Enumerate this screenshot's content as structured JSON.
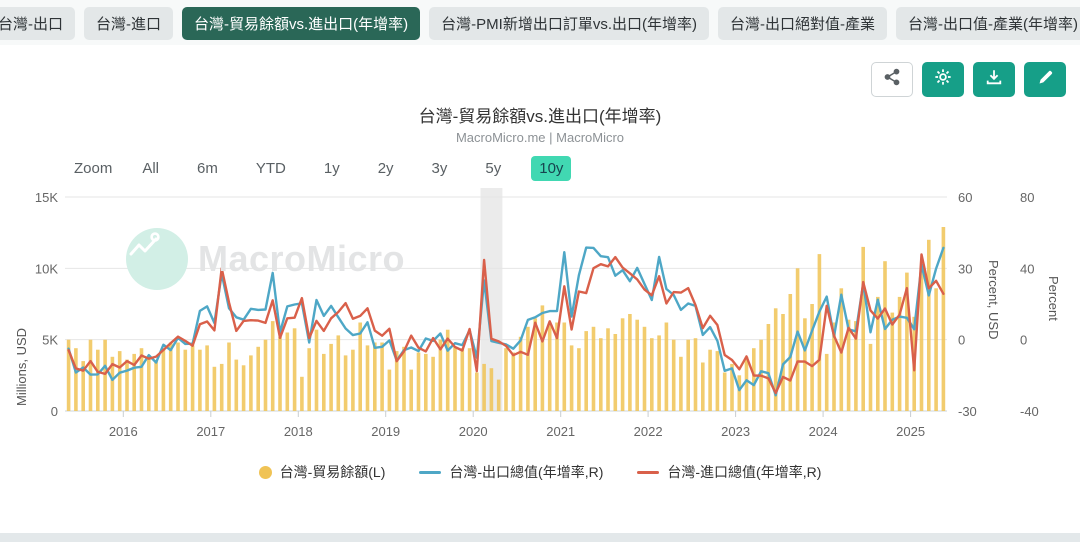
{
  "tabbar": {
    "tabs": [
      {
        "label": "台灣-出口",
        "active": false
      },
      {
        "label": "台灣-進口",
        "active": false
      },
      {
        "label": "台灣-貿易餘額vs.進出口(年增率)",
        "active": true
      },
      {
        "label": "台灣-PMI新增出口訂單vs.出口(年增率)",
        "active": false
      },
      {
        "label": "台灣-出口絕對值-產業",
        "active": false
      },
      {
        "label": "台灣-出口值-產業(年增率)",
        "active": false
      }
    ],
    "active_color": "#2a6757",
    "inactive_color": "#e3e7e8"
  },
  "toolbar": {
    "buttons": [
      "share",
      "settings",
      "download",
      "edit"
    ],
    "accent_color": "#169f88"
  },
  "header": {
    "title": "台灣-貿易餘額vs.進出口(年增率)",
    "subtitle": "MacroMicro.me | MacroMicro"
  },
  "zoombar": {
    "label": "Zoom",
    "options": [
      "All",
      "6m",
      "YTD",
      "1y",
      "2y",
      "3y",
      "5y",
      "10y"
    ],
    "active": "10y",
    "active_color": "#41d8b2"
  },
  "watermark": {
    "brand": "MacroMicro"
  },
  "legend": [
    {
      "label": "台灣-貿易餘額(L)",
      "marker": "dot"
    },
    {
      "label": "台灣-出口總值(年增率,R)",
      "marker": "line"
    },
    {
      "label": "台灣-進口總值(年增率,R)",
      "marker": "line"
    }
  ],
  "chart_data": {
    "type": "combo-bar-line",
    "x_start": "2015-05",
    "x_freq": "monthly",
    "x_count": 121,
    "x_ticks": [
      2016,
      2017,
      2018,
      2019,
      2020,
      2021,
      2022,
      2023,
      2024,
      2025
    ],
    "recession_band": {
      "start": "2020-02",
      "end": "2020-04",
      "color": "#ebebeb"
    },
    "axes": {
      "left": {
        "label": "Millions, USD",
        "range": [
          0,
          15000
        ],
        "ticks": [
          0,
          5000,
          10000,
          15000
        ],
        "tick_labels": [
          "0",
          "5K",
          "10K",
          "15K"
        ]
      },
      "right1": {
        "label": "Percent, USD",
        "range": [
          -30,
          60
        ],
        "ticks": [
          -30,
          0,
          30,
          60
        ],
        "tick_labels": [
          "-30",
          "0",
          "30",
          "60"
        ]
      },
      "right2": {
        "label": "Percent",
        "range": [
          -40,
          80
        ],
        "ticks": [
          -40,
          0,
          40,
          80
        ],
        "tick_labels": [
          "-40",
          "0",
          "40",
          "80"
        ]
      }
    },
    "grid": true,
    "legend_position": "bottom",
    "series": [
      {
        "name": "台灣-貿易餘額(L)",
        "type": "bar",
        "axis": "left",
        "color": "#f0c355",
        "values": [
          5000,
          4400,
          3500,
          5000,
          4300,
          5000,
          3800,
          4200,
          3600,
          4000,
          4400,
          3800,
          3550,
          4300,
          4800,
          4800,
          4300,
          4600,
          4300,
          4600,
          3100,
          3300,
          4800,
          3600,
          3200,
          3900,
          4500,
          5000,
          6300,
          5200,
          5500,
          5800,
          2400,
          4400,
          5700,
          4000,
          4700,
          5300,
          3900,
          4300,
          6200,
          4600,
          4800,
          4800,
          2900,
          4200,
          4500,
          2900,
          4100,
          4000,
          3800,
          5000,
          5700,
          4500,
          4400,
          4400,
          2700,
          3300,
          3000,
          2200,
          4400,
          4100,
          5200,
          5900,
          6500,
          7400,
          6100,
          6200,
          6200,
          4600,
          4400,
          5600,
          5900,
          5100,
          5800,
          5400,
          6500,
          6800,
          6400,
          5900,
          5100,
          5300,
          6200,
          5000,
          3800,
          5000,
          5100,
          3400,
          4300,
          4200,
          2700,
          3300,
          2500,
          3800,
          4400,
          5000,
          6100,
          7200,
          6800,
          8200,
          10000,
          6500,
          7500,
          11000,
          4000,
          6200,
          8600,
          6400,
          6300,
          11500,
          4700,
          8000,
          10500,
          6900,
          8000,
          9700,
          6600,
          9800,
          12000,
          8600,
          12900
        ]
      },
      {
        "name": "台灣-出口總值(年增率,R)",
        "type": "line",
        "axis": "right1",
        "color": "#4ea7c6",
        "values": [
          -3.8,
          -13.8,
          -11.7,
          -14.7,
          -14.6,
          -11.0,
          -16.9,
          -13.9,
          -13.0,
          -11.8,
          -11.4,
          -6.5,
          -9.6,
          -2.1,
          -4.4,
          0.8,
          -1.8,
          -1.7,
          12.1,
          14.0,
          7.0,
          27.7,
          13.2,
          9.4,
          8.4,
          13.0,
          12.5,
          12.7,
          28.1,
          3.0,
          14.0,
          14.8,
          15.3,
          -1.2,
          16.7,
          10.0,
          14.2,
          9.4,
          4.7,
          1.9,
          2.6,
          7.3,
          -3.4,
          -3.0,
          -0.3,
          -8.8,
          -4.4,
          -3.3,
          -4.8,
          0.5,
          -0.5,
          2.6,
          -4.6,
          -1.5,
          -2.3,
          4.0,
          -7.6,
          24.9,
          -0.6,
          -1.3,
          -2.0,
          -3.8,
          -0.3,
          8.3,
          9.4,
          11.2,
          12.0,
          12.0,
          36.8,
          9.7,
          27.1,
          38.7,
          38.6,
          35.1,
          34.7,
          26.9,
          29.2,
          24.6,
          30.2,
          23.4,
          16.7,
          34.8,
          21.3,
          18.8,
          12.5,
          15.2,
          14.2,
          2.0,
          5.3,
          -0.5,
          -13.1,
          -12.1,
          -21.2,
          -17.1,
          -19.1,
          -13.3,
          -14.1,
          -23.4,
          -10.4,
          -7.3,
          3.4,
          -4.5,
          3.8,
          11.8,
          18.1,
          1.3,
          18.9,
          4.3,
          3.5,
          23.5,
          3.1,
          16.8,
          4.5,
          8.4,
          9.7,
          9.2,
          4.4,
          31.5,
          18.6,
          29.9,
          38.6
        ]
      },
      {
        "name": "台灣-進口總值(年增率,R)",
        "type": "line",
        "axis": "right2",
        "color": "#d9604a",
        "values": [
          -5.9,
          -16.1,
          -17.4,
          -12.0,
          -18.1,
          -19.2,
          -13.7,
          -15.6,
          -12.0,
          -14.2,
          -8.9,
          -10.7,
          -9.5,
          -5.8,
          -1.9,
          1.7,
          -0.7,
          -3.4,
          8.6,
          10.2,
          5.2,
          40.0,
          20.9,
          4.9,
          10.5,
          10.9,
          10.7,
          9.4,
          22.1,
          1.0,
          12.0,
          12.3,
          23.3,
          0.9,
          10.5,
          4.9,
          12.0,
          15.5,
          20.5,
          11.7,
          13.3,
          17.6,
          5.1,
          2.2,
          6.1,
          -12.1,
          -6.6,
          2.3,
          -4.5,
          -6.6,
          0.9,
          -5.4,
          0.6,
          -4.1,
          -6.1,
          6.0,
          -17.7,
          44.7,
          0.5,
          -1.0,
          -3.5,
          -8.7,
          -6.8,
          -8.5,
          9.5,
          -1.0,
          10.3,
          0.9,
          29.9,
          5.7,
          27.0,
          26.1,
          40.1,
          42.3,
          41.1,
          46.3,
          40.4,
          37.2,
          33.8,
          28.1,
          24.9,
          35.6,
          20.3,
          26.7,
          26.4,
          28.9,
          19.4,
          6.5,
          13.4,
          8.2,
          -8.6,
          -11.4,
          -16.6,
          -9.4,
          -20.1,
          -20.2,
          -21.7,
          -29.9,
          -20.9,
          -22.9,
          -12.2,
          -12.3,
          -14.8,
          -11.3,
          19.0,
          2.2,
          -7.2,
          6.6,
          0.6,
          32.3,
          16.4,
          11.8,
          17.5,
          8.5,
          14.0,
          28.9,
          -17.2,
          47.8,
          28.8,
          33.0,
          25.7
        ]
      }
    ]
  }
}
